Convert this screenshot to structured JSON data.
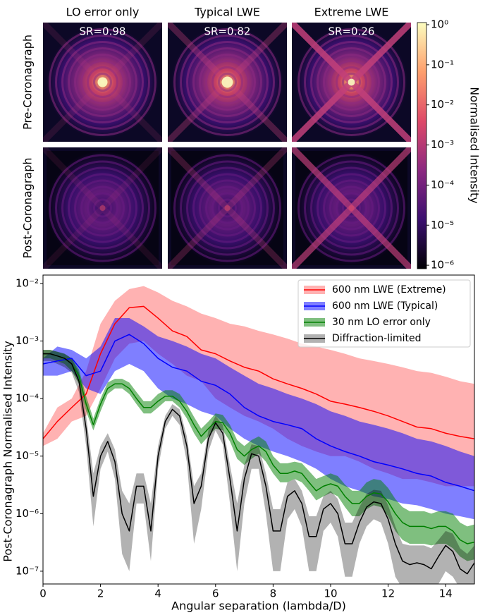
{
  "chart_data": [
    {
      "type": "image",
      "columns": [
        "LO error only",
        "Typical LWE",
        "Extreme LWE"
      ],
      "rows": [
        "Pre-Coronagraph",
        "Post-Coronagraph"
      ],
      "strehl_labels": [
        "SR=0.98",
        "SR=0.82",
        "SR=0.26"
      ],
      "colorbar": {
        "label": "Normalised Intensity",
        "log": true,
        "lim": [
          8.2e-07,
          1.13
        ],
        "ticks": [
          {
            "value": 1,
            "label": "10⁰"
          },
          {
            "value": 0.1,
            "label": "10⁻¹"
          },
          {
            "value": 0.01,
            "label": "10⁻²"
          },
          {
            "value": 0.001,
            "label": "10⁻³"
          },
          {
            "value": 0.0001,
            "label": "10⁻⁴"
          },
          {
            "value": 1e-05,
            "label": "10⁻⁵"
          },
          {
            "value": 1e-06,
            "label": "10⁻⁶"
          }
        ]
      }
    },
    {
      "type": "line",
      "xlabel": "Angular separation (lambda/D)",
      "ylabel": "Post-Coronagraph Normalised Intensity",
      "log_y": true,
      "legend": "upper right",
      "xlim": [
        0,
        15
      ],
      "ylim": [
        6e-08,
        0.014
      ],
      "xticks": [
        0,
        2,
        4,
        6,
        8,
        10,
        12,
        14
      ],
      "yticks": [
        {
          "value": 0.01,
          "label": "10⁻²"
        },
        {
          "value": 0.001,
          "label": "10⁻³"
        },
        {
          "value": 0.0001,
          "label": "10⁻⁴"
        },
        {
          "value": 1e-05,
          "label": "10⁻⁵"
        },
        {
          "value": 1e-06,
          "label": "10⁻⁶"
        },
        {
          "value": 1e-07,
          "label": "10⁻⁷"
        }
      ],
      "x": [
        0,
        0.25,
        0.5,
        0.75,
        1,
        1.25,
        1.5,
        1.75,
        2,
        2.25,
        2.5,
        2.75,
        3,
        3.25,
        3.5,
        3.75,
        4,
        4.25,
        4.5,
        4.75,
        5,
        5.25,
        5.5,
        5.75,
        6,
        6.25,
        6.5,
        6.75,
        7,
        7.25,
        7.5,
        7.75,
        8,
        8.25,
        8.5,
        8.75,
        9,
        9.25,
        9.5,
        9.75,
        10,
        10.25,
        10.5,
        10.75,
        11,
        11.25,
        11.5,
        11.75,
        12,
        12.25,
        12.5,
        12.75,
        13,
        13.25,
        13.5,
        13.75,
        14,
        14.25,
        14.5,
        14.75,
        15
      ],
      "series": [
        {
          "name": "600 nm LWE (Extreme)",
          "color": "#ff0000",
          "band_opacity": 0.3,
          "x": [
            0,
            0.5,
            1,
            1.5,
            2,
            2.5,
            3,
            3.5,
            4,
            4.5,
            5,
            5.5,
            6,
            6.5,
            7,
            7.5,
            8,
            8.5,
            9,
            9.5,
            10,
            10.5,
            11,
            11.5,
            12,
            12.5,
            13,
            13.5,
            14,
            14.5,
            15
          ],
          "values": [
            2e-05,
            4e-05,
            7e-05,
            0.00012,
            0.0006,
            0.002,
            0.0038,
            0.004,
            0.0025,
            0.0015,
            0.0012,
            0.0007,
            0.0006,
            0.00045,
            0.00035,
            0.0003,
            0.00022,
            0.00018,
            0.00015,
            0.00012,
            9e-05,
            8e-05,
            7e-05,
            6e-05,
            5e-05,
            4e-05,
            3.2e-05,
            3e-05,
            2.5e-05,
            2.2e-05,
            2e-05
          ],
          "lower": [
            1.5e-05,
            2e-05,
            4e-05,
            5e-05,
            0.00015,
            0.0005,
            0.0009,
            0.001,
            0.0006,
            0.0004,
            0.00025,
            0.0002,
            0.0001,
            7e-05,
            5e-05,
            4e-05,
            3e-05,
            2e-05,
            1.5e-05,
            1.2e-05,
            1e-05,
            1e-05,
            8e-06,
            6e-06,
            5e-06,
            4e-06,
            4e-06,
            3.5e-06,
            3e-06,
            3e-06,
            3e-06
          ],
          "upper": [
            2.5e-05,
            7e-05,
            0.0001,
            0.0003,
            0.002,
            0.005,
            0.008,
            0.009,
            0.007,
            0.005,
            0.004,
            0.003,
            0.0025,
            0.002,
            0.0018,
            0.0015,
            0.0013,
            0.0011,
            0.0009,
            0.0008,
            0.0007,
            0.0006,
            0.0005,
            0.00045,
            0.0004,
            0.00035,
            0.0003,
            0.00028,
            0.00024,
            0.0002,
            0.00018
          ]
        },
        {
          "name": "600 nm LWE (Typical)",
          "color": "#0000ff",
          "band_opacity": 0.5,
          "x": [
            0,
            0.5,
            1,
            1.5,
            2,
            2.5,
            3,
            3.5,
            4,
            4.5,
            5,
            5.5,
            6,
            6.5,
            7,
            7.5,
            8,
            8.5,
            9,
            9.5,
            10,
            10.5,
            11,
            11.5,
            12,
            12.5,
            13,
            13.5,
            14,
            14.5,
            15
          ],
          "values": [
            0.0004,
            0.00045,
            0.0005,
            0.00025,
            0.0003,
            0.001,
            0.0013,
            0.0009,
            0.0005,
            0.00035,
            0.0003,
            0.0002,
            0.00017,
            0.00012,
            7e-05,
            5e-05,
            4e-05,
            3.5e-05,
            3e-05,
            2e-05,
            1.5e-05,
            1.2e-05,
            1e-05,
            8e-06,
            7e-06,
            6e-06,
            5e-06,
            4.5e-06,
            3.5e-06,
            3e-06,
            2.5e-06
          ],
          "lower": [
            0.00025,
            0.00025,
            0.0003,
            0.00015,
            0.00012,
            0.0003,
            0.0004,
            0.0003,
            0.00015,
            0.0001,
            8e-05,
            6e-05,
            5e-05,
            3e-05,
            2e-05,
            1.5e-05,
            1.2e-05,
            1e-05,
            8e-06,
            6e-06,
            4e-06,
            3e-06,
            2.5e-06,
            2e-06,
            1.8e-06,
            1.5e-06,
            1.4e-06,
            1.2e-06,
            1e-06,
            9e-07,
            8e-07
          ],
          "upper": [
            0.0005,
            0.0008,
            0.0007,
            0.0005,
            0.0008,
            0.0025,
            0.0025,
            0.0018,
            0.0012,
            0.001,
            0.0008,
            0.0006,
            0.0005,
            0.00035,
            0.00025,
            0.00018,
            0.00015,
            0.00012,
            0.0001,
            8e-05,
            6e-05,
            5e-05,
            4e-05,
            3.5e-05,
            3e-05,
            2.5e-05,
            2e-05,
            1.8e-05,
            1.5e-05,
            1.2e-05,
            1e-05
          ]
        },
        {
          "name": "30 nm LO error only",
          "color": "#008000",
          "band_opacity": 0.5,
          "values": [
            0.0006,
            0.0006,
            0.00055,
            0.0005,
            0.0004,
            0.00025,
            8e-05,
            3.5e-05,
            8e-05,
            0.00015,
            0.00018,
            0.00018,
            0.00015,
            0.0001,
            7e-05,
            7e-05,
            9e-05,
            0.00011,
            0.00011,
            9e-05,
            6e-05,
            3.5e-05,
            2.2e-05,
            3e-05,
            4e-05,
            3.8e-05,
            2.5e-05,
            1.3e-05,
            1e-05,
            1.3e-05,
            1.5e-05,
            1.2e-05,
            7e-06,
            5e-06,
            5e-06,
            5.5e-06,
            5e-06,
            3.5e-06,
            2.5e-06,
            3e-06,
            3.3e-06,
            3e-06,
            2e-06,
            1.5e-06,
            1.5e-06,
            2e-06,
            2.3e-06,
            2.2e-06,
            1.6e-06,
            1e-06,
            7e-07,
            6e-07,
            6e-07,
            6e-07,
            5.5e-07,
            6e-07,
            6e-07,
            5e-07,
            3.5e-07,
            3e-07,
            3.2e-07
          ],
          "lower": [
            0.0005,
            0.0005,
            0.00045,
            0.0004,
            0.0003,
            0.00018,
            6e-05,
            2.8e-05,
            6e-05,
            0.00012,
            0.00015,
            0.00015,
            0.00012,
            8e-05,
            5.5e-05,
            5.5e-05,
            7e-05,
            9e-05,
            9e-05,
            7e-05,
            4.5e-05,
            2.5e-05,
            1.6e-05,
            2.2e-05,
            3e-05,
            2.8e-05,
            1.8e-05,
            9e-06,
            7e-06,
            9e-06,
            1.1e-05,
            8e-06,
            5e-06,
            3.5e-06,
            3.5e-06,
            4e-06,
            3.5e-06,
            2.5e-06,
            1.7e-06,
            2e-06,
            2.3e-06,
            2e-06,
            1.3e-06,
            9e-07,
            9e-07,
            1.2e-06,
            1.4e-06,
            1.3e-06,
            9e-07,
            5e-07,
            3.5e-07,
            3e-07,
            3e-07,
            3e-07,
            2.8e-07,
            3e-07,
            3e-07,
            2.5e-07,
            1.8e-07,
            1.5e-07,
            1.6e-07
          ],
          "upper": [
            0.0007,
            0.0007,
            0.00065,
            0.0006,
            0.0005,
            0.00032,
            0.00011,
            4.5e-05,
            0.0001,
            0.00019,
            0.00022,
            0.00022,
            0.00019,
            0.00013,
            9e-05,
            9e-05,
            0.00012,
            0.00014,
            0.00014,
            0.00012,
            8e-05,
            4.8e-05,
            3e-05,
            4e-05,
            5.5e-05,
            5.2e-05,
            3.5e-05,
            1.9e-05,
            1.5e-05,
            1.9e-05,
            2.2e-05,
            1.8e-05,
            1e-05,
            7.5e-06,
            7.5e-06,
            8e-06,
            7.5e-06,
            5.5e-06,
            4e-06,
            4.5e-06,
            5e-06,
            4.5e-06,
            3.2e-06,
            2.5e-06,
            2.5e-06,
            3.5e-06,
            4e-06,
            3.8e-06,
            2.8e-06,
            1.8e-06,
            1.3e-06,
            1.1e-06,
            1.1e-06,
            1.1e-06,
            1e-06,
            1.1e-06,
            1.1e-06,
            1e-06,
            7e-07,
            6e-07,
            6.5e-07
          ]
        },
        {
          "name": "Diffraction-limited",
          "color": "#000000",
          "band_opacity": 0.3,
          "values": [
            0.0006,
            0.0006,
            0.00055,
            0.0005,
            0.0004,
            0.0002,
            3e-05,
            2e-06,
            1e-05,
            1.8e-05,
            8e-06,
            1e-06,
            5e-07,
            3e-06,
            3e-06,
            5e-07,
            1e-05,
            4e-05,
            6.5e-05,
            5e-05,
            1.5e-05,
            1.5e-06,
            3e-06,
            2e-05,
            3.8e-05,
            2.5e-05,
            4e-06,
            5e-07,
            4e-06,
            1.1e-05,
            1e-05,
            3e-06,
            5e-07,
            5e-07,
            2e-06,
            2.5e-06,
            1.5e-06,
            4e-07,
            4e-07,
            1.2e-06,
            1.5e-06,
            1e-06,
            3e-07,
            3e-07,
            7e-07,
            1.3e-06,
            1.6e-06,
            1.5e-06,
            8e-07,
            3e-07,
            1.5e-07,
            1.3e-07,
            1.4e-07,
            1.3e-07,
            1.1e-07,
            1.8e-07,
            2.8e-07,
            2.2e-07,
            1.1e-07,
            9e-08,
            1.4e-07
          ],
          "lower": [
            0.00045,
            0.00045,
            0.0004,
            0.00035,
            0.00028,
            0.00013,
            1.5e-05,
            6e-07,
            6e-06,
            1.2e-05,
            4e-06,
            2e-07,
            1e-07,
            1.5e-06,
            1.5e-06,
            1.5e-07,
            6e-06,
            3e-05,
            5e-05,
            3.5e-05,
            8e-06,
            3e-07,
            1.2e-06,
            1.2e-05,
            2.8e-05,
            1.6e-05,
            1.5e-06,
            1e-07,
            1.5e-06,
            6e-06,
            6e-06,
            1e-06,
            1e-07,
            1e-07,
            8e-07,
            1.2e-06,
            6e-07,
            1e-07,
            1e-07,
            5e-07,
            7e-07,
            4e-07,
            8e-08,
            8e-08,
            3e-07,
            6e-07,
            8e-07,
            7e-07,
            3e-07,
            8e-08,
            5e-08,
            5e-08,
            5e-08,
            5e-08,
            5e-08,
            6e-08,
            1e-07,
            8e-08,
            5e-08,
            5e-08,
            5e-08
          ],
          "upper": [
            0.0007,
            0.0007,
            0.00065,
            0.0006,
            0.0005,
            0.00028,
            5e-05,
            5e-06,
            1.5e-05,
            2.5e-05,
            1.3e-05,
            2.5e-06,
            1.5e-06,
            5e-06,
            5e-06,
            1.5e-06,
            1.5e-05,
            5e-05,
            8e-05,
            6.5e-05,
            2.2e-05,
            3e-06,
            5e-06,
            2.8e-05,
            5e-05,
            3.5e-05,
            7e-06,
            1.5e-06,
            7e-06,
            1.6e-05,
            1.5e-05,
            5e-06,
            1.2e-06,
            1.2e-06,
            3.5e-06,
            4e-06,
            2.5e-06,
            9e-07,
            9e-07,
            2e-06,
            2.5e-06,
            1.8e-06,
            7e-07,
            7e-07,
            1.3e-06,
            2.2e-06,
            2.6e-06,
            2.5e-06,
            1.4e-06,
            6e-07,
            3e-07,
            2.8e-07,
            2.8e-07,
            2.8e-07,
            2.5e-07,
            3.5e-07,
            5e-07,
            4.5e-07,
            2.5e-07,
            2e-07,
            2.8e-07
          ]
        }
      ]
    }
  ]
}
